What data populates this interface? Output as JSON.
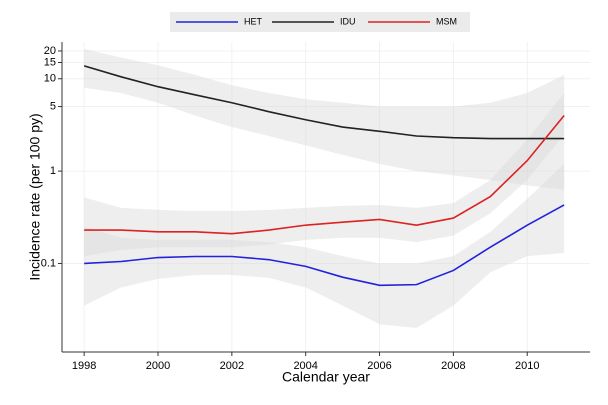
{
  "chart_data": {
    "type": "line",
    "log_y": true,
    "grid": true,
    "x_label": "Calendar year",
    "y_label": "Incidence rate (per 100 py)",
    "x": [
      1998,
      1999,
      2000,
      2001,
      2002,
      2003,
      2004,
      2005,
      2006,
      2007,
      2008,
      2009,
      2010,
      2011
    ],
    "xlim": [
      1997.4,
      2011.7
    ],
    "xticks": [
      1998,
      2000,
      2002,
      2004,
      2006,
      2008,
      2010
    ],
    "ylim": [
      0.011,
      25
    ],
    "yticks": [
      0.1,
      1,
      5,
      10,
      15,
      20
    ],
    "series": [
      {
        "name": "HET",
        "color": "#2222dd",
        "values": [
          0.1,
          0.105,
          0.116,
          0.119,
          0.119,
          0.11,
          0.093,
          0.071,
          0.058,
          0.059,
          0.084,
          0.15,
          0.26,
          0.43
        ],
        "lower": [
          0.035,
          0.055,
          0.068,
          0.075,
          0.075,
          0.07,
          0.055,
          0.035,
          0.022,
          0.02,
          0.035,
          0.08,
          0.12,
          0.13
        ],
        "upper": [
          0.25,
          0.19,
          0.18,
          0.18,
          0.18,
          0.17,
          0.15,
          0.12,
          0.1,
          0.1,
          0.12,
          0.22,
          0.5,
          1.2
        ]
      },
      {
        "name": "IDU",
        "color": "#222222",
        "values": [
          13.8,
          10.5,
          8.2,
          6.7,
          5.5,
          4.4,
          3.6,
          3.0,
          2.7,
          2.4,
          2.3,
          2.25,
          2.25,
          2.25
        ],
        "lower": [
          8,
          7,
          5.5,
          4,
          3,
          2.4,
          1.9,
          1.5,
          1.2,
          1,
          0.9,
          0.8,
          0.7,
          0.63
        ],
        "upper": [
          21,
          17,
          14,
          11,
          8.5,
          7,
          6,
          5.5,
          5,
          5,
          5,
          5.5,
          7,
          11
        ]
      },
      {
        "name": "MSM",
        "color": "#dd2222",
        "values": [
          0.23,
          0.23,
          0.22,
          0.22,
          0.21,
          0.23,
          0.26,
          0.28,
          0.3,
          0.26,
          0.31,
          0.53,
          1.3,
          4.0
        ],
        "lower": [
          0.12,
          0.14,
          0.15,
          0.15,
          0.15,
          0.16,
          0.18,
          0.19,
          0.19,
          0.17,
          0.2,
          0.35,
          0.8,
          2.5
        ],
        "upper": [
          0.52,
          0.4,
          0.38,
          0.37,
          0.37,
          0.38,
          0.4,
          0.42,
          0.43,
          0.4,
          0.45,
          0.8,
          2.2,
          7
        ]
      }
    ]
  }
}
